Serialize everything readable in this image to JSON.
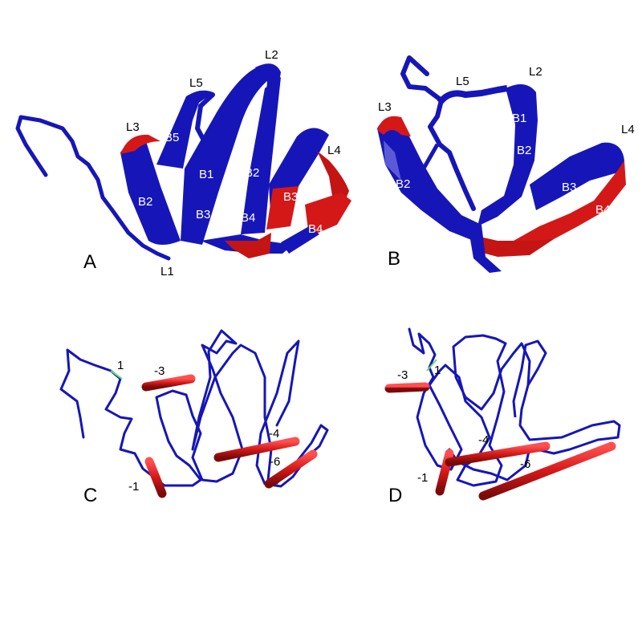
{
  "colors": {
    "ribbon": "#1616b8",
    "ribbon_dark": "#0a0a7a",
    "highlight": "#d41818",
    "highlight_dark": "#8a0c0c",
    "bond_line": "#66dd66",
    "background": "#ffffff"
  },
  "panels": {
    "A": {
      "letter": "A",
      "loops": {
        "L1": "L1",
        "L2": "L2",
        "L3": "L3",
        "L4": "L4",
        "L5": "L5"
      },
      "strands": {
        "B1": "B1",
        "B2a": "B2",
        "B2b": "B2",
        "B3a": "B3",
        "B3b": "B3",
        "B4a": "B4",
        "B4b": "B4",
        "B5": "B5"
      }
    },
    "B": {
      "letter": "B",
      "loops": {
        "L2": "L2",
        "L3": "L3",
        "L4": "L4",
        "L5": "L5"
      },
      "strands": {
        "B1": "B1",
        "B2a": "B2",
        "B2b": "B2",
        "B3": "B3",
        "B4": "B4"
      }
    },
    "C": {
      "letter": "C",
      "bond_labels": {
        "p1": "1",
        "m1": "-1",
        "m3": "-3",
        "m4": "-4",
        "m6": "-6"
      }
    },
    "D": {
      "letter": "D",
      "bond_labels": {
        "p1": "1",
        "m1": "-1",
        "m3": "-3",
        "m4": "-4",
        "m6": "-6"
      }
    }
  }
}
